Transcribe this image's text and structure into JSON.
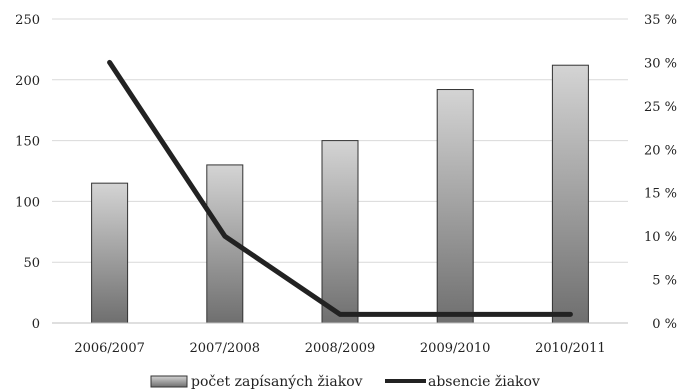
{
  "chart_data": {
    "type": "bar",
    "categories": [
      "2006/2007",
      "2007/2008",
      "2008/2009",
      "2009/2010",
      "2010/2011"
    ],
    "series": [
      {
        "name": "počet zapísaných žiakov",
        "type": "bar",
        "axis": "left",
        "values": [
          115,
          130,
          150,
          192,
          212
        ]
      },
      {
        "name": "absencie žiakov",
        "type": "line",
        "axis": "right",
        "values": [
          30,
          10,
          1,
          1,
          1
        ]
      }
    ],
    "y_left": {
      "min": 0,
      "max": 250,
      "ticks": [
        0,
        50,
        100,
        150,
        200,
        250
      ],
      "tick_labels": [
        "0",
        "50",
        "100",
        "150",
        "200",
        "250"
      ]
    },
    "y_right": {
      "min": 0,
      "max": 35,
      "ticks": [
        0,
        5,
        10,
        15,
        20,
        25,
        30,
        35
      ],
      "tick_labels": [
        "0 %",
        "5 %",
        "10 %",
        "15 %",
        "20 %",
        "25 %",
        "30 %",
        "35 %"
      ]
    },
    "grid": true,
    "legend_position": "bottom",
    "colors": {
      "bar_top": "#d4d4d4",
      "bar_bottom": "#6f6f6f",
      "bar_border": "#333333",
      "line": "#222222",
      "grid": "#d9d9d9"
    }
  }
}
